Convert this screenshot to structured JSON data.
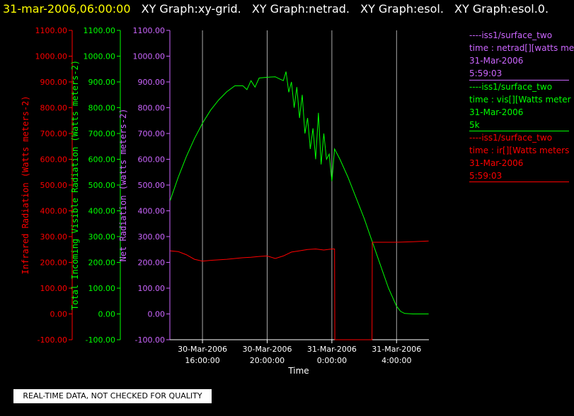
{
  "header": {
    "timestamp": "31-mar-2006,06:00:00",
    "titles": [
      "XY Graph:xy-grid.",
      "XY Graph:netrad.",
      "XY Graph:esol.",
      "XY Graph:esol.0."
    ]
  },
  "chart_data": {
    "type": "line",
    "xlabel": "Time",
    "x_ticks": [
      {
        "t": "2006-03-30T16:00:00",
        "line1": "30-Mar-2006",
        "line2": "16:00:00"
      },
      {
        "t": "2006-03-30T20:00:00",
        "line1": "30-Mar-2006",
        "line2": "20:00:00"
      },
      {
        "t": "2006-03-31T00:00:00",
        "line1": "31-Mar-2006",
        "line2": "0:00:00"
      },
      {
        "t": "2006-03-31T04:00:00",
        "line1": "31-Mar-2006",
        "line2": "4:00:00"
      }
    ],
    "xlim": [
      "2006-03-30T13:59:00",
      "2006-03-31T06:00:00"
    ],
    "y_axes": [
      {
        "id": "ir",
        "label": "Infrared Radiation (Watts meters-2)",
        "color": "#ff0000",
        "ylim": [
          -100,
          1100
        ],
        "ticks": [
          "-100.00",
          "0.00",
          "100.00",
          "200.00",
          "300.00",
          "400.00",
          "500.00",
          "600.00",
          "700.00",
          "800.00",
          "900.00",
          "1000.00",
          "1100.00"
        ]
      },
      {
        "id": "vis",
        "label": "Total Incoming Visible Radiation (Watts meters-2)",
        "color": "#00ff00",
        "ylim": [
          -100,
          1100
        ],
        "ticks": [
          "-100.00",
          "0.00",
          "100.00",
          "200.00",
          "300.00",
          "400.00",
          "500.00",
          "600.00",
          "700.00",
          "800.00",
          "900.00",
          "1000.00",
          "1100.00"
        ]
      },
      {
        "id": "net",
        "label": "Net Radiation (watts meters-2)",
        "color": "#cc66ff",
        "ylim": [
          -100,
          1100
        ],
        "ticks": [
          "-100.00",
          "0.00",
          "100.00",
          "200.00",
          "300.00",
          "400.00",
          "500.00",
          "600.00",
          "700.00",
          "800.00",
          "900.00",
          "1000.00",
          "1100.00"
        ]
      }
    ],
    "grid_x": true,
    "series": [
      {
        "name": "iss1/surface_two time : vis[][Watts meters-2]",
        "axis": "vis",
        "color": "#00ff00",
        "points": [
          [
            "2006-03-30T14:00",
            440
          ],
          [
            "2006-03-30T14:30",
            530
          ],
          [
            "2006-03-30T15:00",
            610
          ],
          [
            "2006-03-30T15:30",
            680
          ],
          [
            "2006-03-30T16:00",
            740
          ],
          [
            "2006-03-30T16:30",
            790
          ],
          [
            "2006-03-30T17:00",
            830
          ],
          [
            "2006-03-30T17:30",
            862
          ],
          [
            "2006-03-30T18:00",
            885
          ],
          [
            "2006-03-30T18:30",
            885
          ],
          [
            "2006-03-30T18:45",
            870
          ],
          [
            "2006-03-30T19:00",
            905
          ],
          [
            "2006-03-30T19:15",
            880
          ],
          [
            "2006-03-30T19:30",
            915
          ],
          [
            "2006-03-30T20:00",
            918
          ],
          [
            "2006-03-30T20:30",
            920
          ],
          [
            "2006-03-30T20:45",
            912
          ],
          [
            "2006-03-30T21:00",
            905
          ],
          [
            "2006-03-30T21:10",
            940
          ],
          [
            "2006-03-30T21:20",
            860
          ],
          [
            "2006-03-30T21:30",
            900
          ],
          [
            "2006-03-30T21:40",
            800
          ],
          [
            "2006-03-30T21:50",
            880
          ],
          [
            "2006-03-30T22:00",
            760
          ],
          [
            "2006-03-30T22:10",
            850
          ],
          [
            "2006-03-30T22:20",
            700
          ],
          [
            "2006-03-30T22:30",
            760
          ],
          [
            "2006-03-30T22:40",
            640
          ],
          [
            "2006-03-30T22:50",
            720
          ],
          [
            "2006-03-30T23:00",
            600
          ],
          [
            "2006-03-30T23:10",
            780
          ],
          [
            "2006-03-30T23:20",
            580
          ],
          [
            "2006-03-30T23:30",
            700
          ],
          [
            "2006-03-30T23:40",
            600
          ],
          [
            "2006-03-30T23:50",
            620
          ],
          [
            "2006-03-31T00:00",
            515
          ],
          [
            "2006-03-31T00:10",
            640
          ],
          [
            "2006-03-31T00:30",
            600
          ],
          [
            "2006-03-31T01:00",
            530
          ],
          [
            "2006-03-31T01:30",
            450
          ],
          [
            "2006-03-31T02:00",
            370
          ],
          [
            "2006-03-31T02:30",
            280
          ],
          [
            "2006-03-31T03:00",
            190
          ],
          [
            "2006-03-31T03:30",
            100
          ],
          [
            "2006-03-31T04:00",
            30
          ],
          [
            "2006-03-31T04:15",
            10
          ],
          [
            "2006-03-31T04:30",
            2
          ],
          [
            "2006-03-31T05:00",
            0
          ],
          [
            "2006-03-31T05:59",
            0
          ]
        ]
      },
      {
        "name": "iss1/surface_two time : ir[][Watts meters-2]",
        "axis": "ir",
        "color": "#ff0000",
        "points": [
          [
            "2006-03-30T14:00",
            245
          ],
          [
            "2006-03-30T14:30",
            242
          ],
          [
            "2006-03-30T15:00",
            230
          ],
          [
            "2006-03-30T15:30",
            212
          ],
          [
            "2006-03-30T16:00",
            205
          ],
          [
            "2006-03-30T16:30",
            208
          ],
          [
            "2006-03-30T17:00",
            210
          ],
          [
            "2006-03-30T17:30",
            212
          ],
          [
            "2006-03-30T18:00",
            215
          ],
          [
            "2006-03-30T18:30",
            218
          ],
          [
            "2006-03-30T19:00",
            220
          ],
          [
            "2006-03-30T19:30",
            223
          ],
          [
            "2006-03-30T20:00",
            225
          ],
          [
            "2006-03-30T20:30",
            215
          ],
          [
            "2006-03-30T21:00",
            225
          ],
          [
            "2006-03-30T21:30",
            240
          ],
          [
            "2006-03-30T22:00",
            245
          ],
          [
            "2006-03-30T22:30",
            250
          ],
          [
            "2006-03-30T23:00",
            252
          ],
          [
            "2006-03-30T23:30",
            248
          ],
          [
            "2006-03-31T00:00",
            252
          ],
          [
            "2006-03-31T00:10",
            252
          ],
          [
            "2006-03-31T00:11",
            -100
          ],
          [
            "2006-03-31T02:29",
            -100
          ],
          [
            "2006-03-31T02:30",
            278
          ],
          [
            "2006-03-31T04:00",
            278
          ],
          [
            "2006-03-31T05:00",
            280
          ],
          [
            "2006-03-31T05:59",
            283
          ]
        ]
      }
    ],
    "legend": [
      {
        "line1": "----iss1/surface_two",
        "line2": "time : netrad[][watts me",
        "line3": "31-Mar-2006",
        "line4": "5:59:03",
        "color": "#cc66ff"
      },
      {
        "line1": "----iss1/surface_two",
        "line2": "time : vis[][Watts meter",
        "line3": "31-Mar-2006",
        "line4": "5k",
        "color": "#00ff00"
      },
      {
        "line1": "----iss1/surface_two",
        "line2": "time : ir[][Watts meters",
        "line3": "31-Mar-2006",
        "line4": "5:59:03",
        "color": "#ff0000"
      }
    ]
  },
  "notice": "REAL-TIME DATA, NOT CHECKED FOR QUALITY"
}
